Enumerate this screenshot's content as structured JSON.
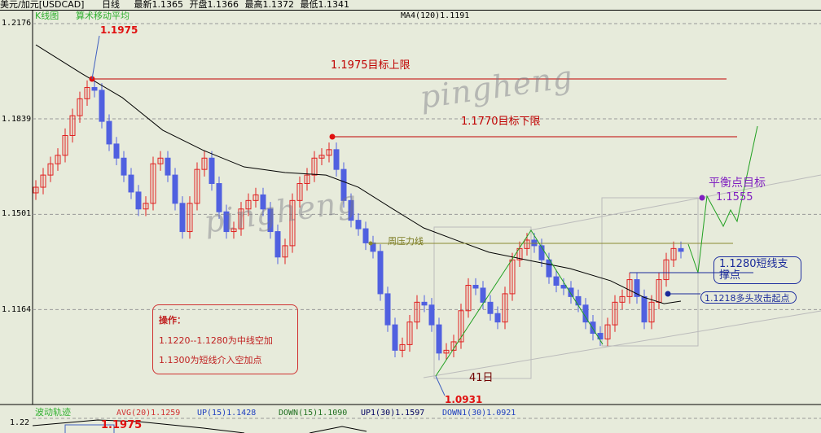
{
  "header": {
    "symbol": "美元/加元[USDCAD]",
    "period": "日线",
    "latest": "最新1.1365",
    "open": "开盘1.1366",
    "high": "最高1.1372",
    "low": "最低1.1341"
  },
  "main_panel": {
    "kline_label": "K线图",
    "ma_type": "算术移动平均",
    "ma_readout": "MA4(120)1.1191"
  },
  "annotations": {
    "peak_label": "1.1975",
    "upper_target": "1.1975目标上限",
    "lower_target": "1.1770目标下限",
    "weekly_resistance": "周压力线",
    "balance_title": "平衡点目标",
    "balance_value": "1.1555",
    "support_line1": "1.1280短线支",
    "support_line2": "撑点",
    "bull_start": "1.1218多头攻击起点",
    "days": "41日",
    "low_label": "1.0931",
    "watermark": "pingheng"
  },
  "operation": {
    "title": "操作：",
    "line1": "1.1220--1.1280为中线空加",
    "line2": "1.1300为短线介入空加点"
  },
  "sub_panel": {
    "title": "波动轨迹",
    "avg": "AVG(20)1.1259",
    "up": "UP(15)1.1428",
    "down": "DOWN(15)1.1090",
    "up1": "UP1(30)1.1597",
    "down1": "DOWN1(30)1.0921",
    "axis_label": "1.22",
    "peak_label": "1.1975"
  },
  "colors": {
    "up": "#e02020",
    "down": "#5060e0",
    "ma": "#000000",
    "target": "#c00000",
    "resistance": "#8a8a30",
    "projection": "#20a020",
    "support": "#1a2a9a",
    "balance": "#8020c0"
  },
  "chart_data": {
    "type": "candlestick",
    "yticks": [
      "1.2176",
      "1.1839",
      "1.1501",
      "1.1164"
    ],
    "ylim": [
      1.0929,
      1.2176
    ],
    "grid": "horizontal dashed",
    "close": [
      1.1597,
      1.164,
      1.168,
      1.171,
      1.178,
      1.185,
      1.191,
      1.195,
      1.194,
      1.183,
      1.175,
      1.17,
      1.164,
      1.158,
      1.152,
      1.154,
      1.168,
      1.17,
      1.164,
      1.154,
      1.144,
      1.154,
      1.166,
      1.17,
      1.161,
      1.151,
      1.144,
      1.145,
      1.152,
      1.155,
      1.157,
      1.152,
      1.144,
      1.135,
      1.139,
      1.155,
      1.161,
      1.164,
      1.17,
      1.171,
      1.173,
      1.166,
      1.155,
      1.148,
      1.145,
      1.14,
      1.137,
      1.122,
      1.111,
      1.102,
      1.104,
      1.112,
      1.119,
      1.118,
      1.111,
      1.101,
      1.102,
      1.105,
      1.116,
      1.125,
      1.124,
      1.119,
      1.115,
      1.112,
      1.122,
      1.134,
      1.138,
      1.141,
      1.139,
      1.134,
      1.128,
      1.125,
      1.124,
      1.121,
      1.118,
      1.112,
      1.108,
      1.106,
      1.111,
      1.119,
      1.121,
      1.127,
      1.121,
      1.112,
      1.119,
      1.127,
      1.134,
      1.138,
      1.137
    ],
    "ma120": [
      [
        0,
        1.2101
      ],
      [
        6.2,
        1.2
      ],
      [
        11.8,
        1.1914
      ],
      [
        17.3,
        1.1799
      ],
      [
        22.9,
        1.1727
      ],
      [
        28.4,
        1.1669
      ],
      [
        34,
        1.1649
      ],
      [
        39.6,
        1.164
      ],
      [
        44,
        1.1597
      ],
      [
        48.4,
        1.1525
      ],
      [
        52.9,
        1.1453
      ],
      [
        57.3,
        1.141
      ],
      [
        61.8,
        1.1367
      ],
      [
        67.3,
        1.1338
      ],
      [
        72.9,
        1.1309
      ],
      [
        78.4,
        1.1266
      ],
      [
        82.9,
        1.1208
      ],
      [
        85.7,
        1.1185
      ],
      [
        88,
        1.1194
      ]
    ]
  }
}
